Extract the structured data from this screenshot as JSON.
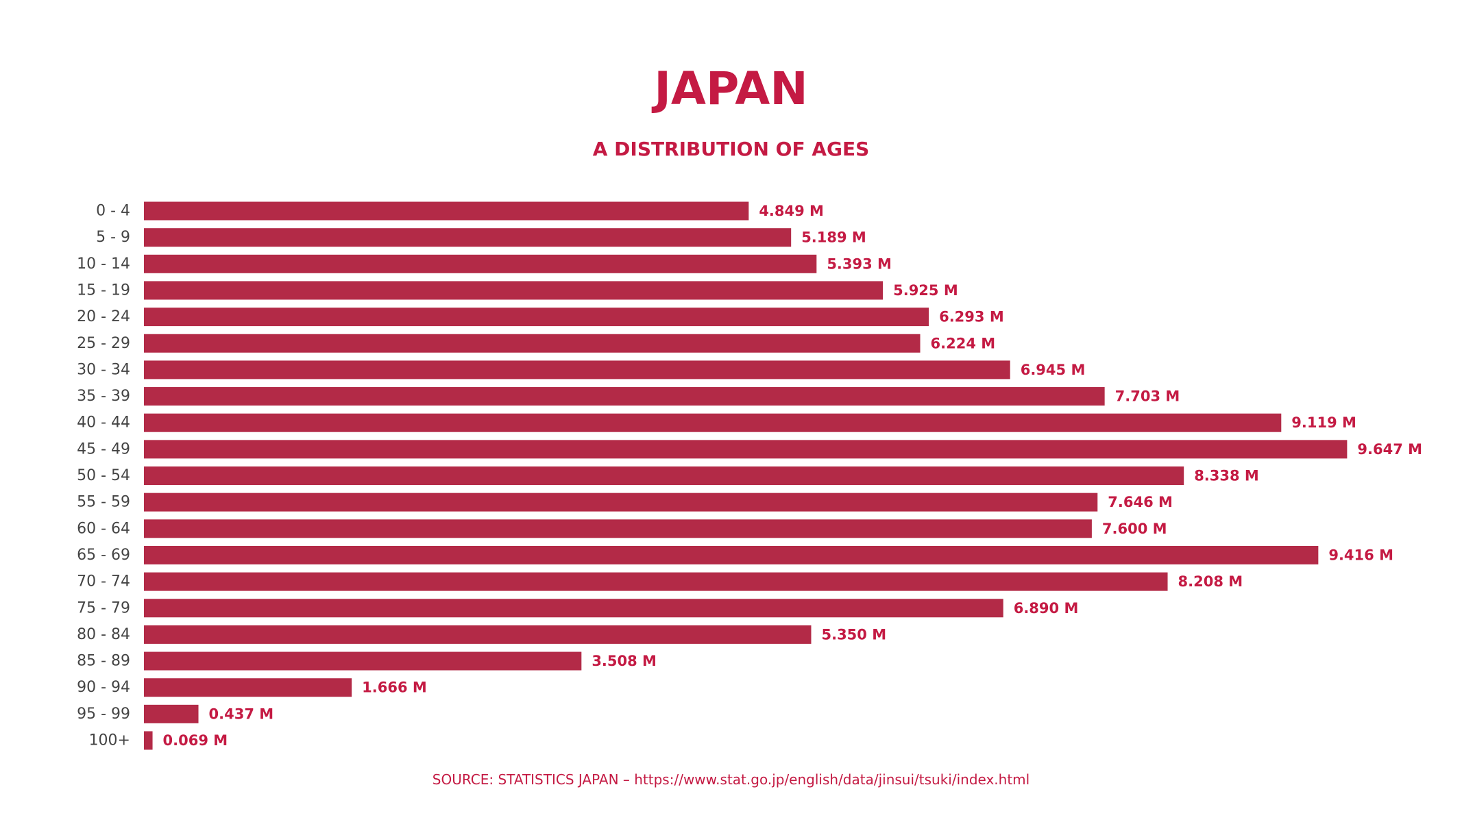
{
  "chart_data": {
    "type": "bar",
    "orientation": "horizontal",
    "title": "JAPAN",
    "subtitle": "A DISTRIBUTION OF AGES",
    "categories": [
      "0 - 4",
      "5 - 9",
      "10 - 14",
      "15 - 19",
      "20 - 24",
      "25 - 29",
      "30 - 34",
      "35 - 39",
      "40 - 44",
      "45 - 49",
      "50 - 54",
      "55 - 59",
      "60 - 64",
      "65 - 69",
      "70 - 74",
      "75 - 79",
      "80 - 84",
      "85 - 89",
      "90 - 94",
      "95 - 99",
      "100+"
    ],
    "values": [
      4.849,
      5.189,
      5.393,
      5.925,
      6.293,
      6.224,
      6.945,
      7.703,
      9.119,
      9.647,
      8.338,
      7.646,
      7.6,
      9.416,
      8.208,
      6.89,
      5.35,
      3.508,
      1.666,
      0.437,
      0.069
    ],
    "value_labels": [
      "4.849 M",
      "5.189 M",
      "5.393 M",
      "5.925 M",
      "6.293 M",
      "6.224 M",
      "6.945 M",
      "7.703 M",
      "9.119 M",
      "9.647 M",
      "8.338 M",
      "7.646 M",
      "7.600 M",
      "9.416 M",
      "8.208 M",
      "6.890 M",
      "5.350 M",
      "3.508 M",
      "1.666 M",
      "0.437 M",
      "0.069 M"
    ],
    "xlim": [
      0,
      10.2
    ],
    "xlabel": "",
    "ylabel": "",
    "grid": false,
    "legend": "none",
    "source": "SOURCE: STATISTICS JAPAN – https://www.stat.go.jp/english/data/jinsui/tsuki/index.html",
    "colors": {
      "bar": "#b32a47",
      "title": "#c41a43",
      "value_label": "#c41a43",
      "category_label": "#444444"
    }
  }
}
